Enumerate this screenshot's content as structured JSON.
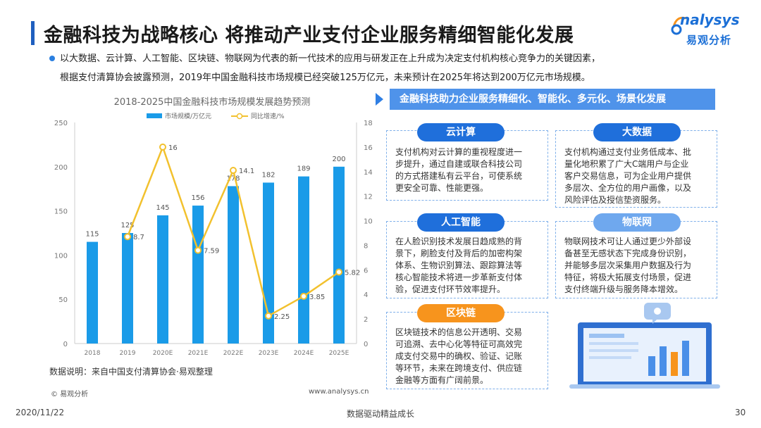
{
  "header": {
    "title": "金融科技为战略核心 将推动产业支付企业服务精细智能化发展",
    "logo_text": "nalysys",
    "logo_letter": "A",
    "logo_cn": "易观分析"
  },
  "intro": {
    "line1": "以大数据、云计算、人工智能、区块链、物联网为代表的新一代技术的应用与研发正在上升成为决定支付机构核心竞争力的关键因素，",
    "line2": "根据支付清算协会披露预测，2019年中国金融科技市场规模已经突破125万亿元，未来预计在2025年将达到200万亿元市场规模。"
  },
  "chart_data": {
    "type": "bar",
    "title": "2018-2025中国金融科技市场规模发展趋势预测",
    "categories": [
      "2018",
      "2019",
      "2020E",
      "2021E",
      "2022E",
      "2023E",
      "2024E",
      "2025E"
    ],
    "series": [
      {
        "name": "市场规模/万亿元",
        "type": "bar",
        "axis": "left",
        "color": "#1a9be8",
        "values": [
          115,
          125,
          145,
          156,
          178,
          182,
          189,
          200
        ]
      },
      {
        "name": "同比增速/%",
        "type": "line",
        "axis": "right",
        "color": "#f2c12e",
        "values": [
          null,
          8.7,
          16,
          7.59,
          14.1,
          2.25,
          3.85,
          5.82
        ]
      }
    ],
    "bar_labels": [
      "115",
      "125",
      "145",
      "156",
      "178",
      "182",
      "189",
      "200"
    ],
    "line_labels": [
      "",
      "8.7",
      "16",
      "7.59",
      "14.1",
      "2.25",
      "3.85",
      "5.82"
    ],
    "ylim_left": [
      0,
      250
    ],
    "yticks_left": [
      "0",
      "50",
      "100",
      "150",
      "200",
      "250"
    ],
    "ylim_right": [
      0,
      18
    ],
    "yticks_right": [
      "0",
      "2",
      "4",
      "6",
      "8",
      "10",
      "12",
      "14",
      "16",
      "18"
    ],
    "grid": false,
    "legend": "top-center"
  },
  "notes": {
    "data_note": "数据说明：来自中国支付清算协会·易观整理",
    "copyright": "© 易观分析",
    "site": "www.analysys.cn"
  },
  "right_panel": {
    "banner": "金融科技助力企业服务精细化、智能化、多元化、场景化发展",
    "cards": [
      {
        "label": "云计算",
        "text": [
          "支付机构对云计算的重视程度进一",
          "步提升，通过自建或联合科技公司",
          "的方式搭建私有云平台，可使系统",
          "更安全可靠、性能更强。"
        ]
      },
      {
        "label": "大数据",
        "text": [
          "支付机构通过支付业务低成本、批",
          "量化地积累了广大C端用户与企业",
          "客户交易信息，可为企业用户提供",
          "多层次、全方位的用户画像，以及",
          "风险评估及授信垫资服务。"
        ]
      },
      {
        "label": "人工智能",
        "text": [
          "在人脸识别技术发展日趋成熟的背",
          "景下，刷脸支付及背后的加密构架",
          "体系、生物识别算法、跟踪算法等",
          "核心智能技术将进一步革新支付体",
          "验，促进支付环节效率提升。"
        ]
      },
      {
        "label": "物联网",
        "text": [
          "物联网技术可让人通过更少外部设",
          "备甚至无感状态下完成身份识别，",
          "并能够多层次采集用户数据及行为",
          "特征，将极大拓展支付场景，促进",
          "支付终端升级与服务降本增效。"
        ]
      },
      {
        "label": "区块链",
        "text": [
          "区块链技术的信息公开透明、交易",
          "可追溯、去中心化等特征可高效完",
          "成支付交易中的确权、验证、记账",
          "等环节，未来在跨境支付、供应链",
          "金融等方面有广阔前景。"
        ]
      }
    ]
  },
  "footer": {
    "date": "2020/11/22",
    "center": "数据驱动精益成长",
    "page": "30"
  },
  "colors": {
    "accent_blue": "#1f6fdb",
    "accent_orange": "#f7941d",
    "bar_blue": "#1a9be8",
    "line_yellow": "#f2c12e"
  }
}
